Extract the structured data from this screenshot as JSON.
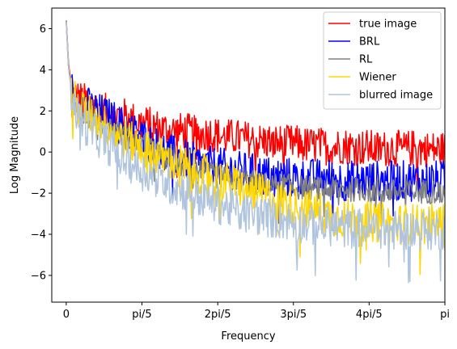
{
  "chart_data": {
    "type": "line",
    "title": "",
    "xlabel": "Frequency",
    "ylabel": "Log Magnitude",
    "xlim": [
      -0.12,
      3.14159
    ],
    "ylim": [
      -7.3,
      7.0
    ],
    "grid": false,
    "legend_position": "top-right",
    "xticks": [
      {
        "value": 0,
        "label": "0"
      },
      {
        "value": 0.628,
        "label": "pi/5"
      },
      {
        "value": 1.257,
        "label": "2pi/5"
      },
      {
        "value": 1.885,
        "label": "3pi/5"
      },
      {
        "value": 2.513,
        "label": "4pi/5"
      },
      {
        "value": 3.142,
        "label": "pi"
      }
    ],
    "yticks": [
      {
        "value": -6,
        "label": "−6"
      },
      {
        "value": -4,
        "label": "−4"
      },
      {
        "value": -2,
        "label": "−2"
      },
      {
        "value": 0,
        "label": "0"
      },
      {
        "value": 2,
        "label": "2"
      },
      {
        "value": 4,
        "label": "4"
      },
      {
        "value": 6,
        "label": "6"
      }
    ],
    "series": [
      {
        "name": "true image",
        "color": "#ff0000",
        "x": [
          0,
          0.02,
          0.05,
          0.1,
          0.2,
          0.3,
          0.4,
          0.5,
          0.6,
          0.7,
          0.8,
          0.9,
          1.0,
          1.1,
          1.2,
          1.3,
          1.4,
          1.5,
          1.6,
          1.7,
          1.8,
          1.9,
          2.0,
          2.1,
          2.2,
          2.3,
          2.4,
          2.5,
          2.6,
          2.7,
          2.8,
          2.9,
          3.0,
          3.1,
          3.14
        ],
        "y": [
          6.4,
          4.2,
          3.0,
          2.8,
          2.5,
          2.2,
          2.0,
          1.9,
          1.6,
          1.5,
          1.3,
          1.2,
          1.2,
          1.0,
          1.1,
          0.9,
          0.9,
          0.8,
          0.7,
          0.7,
          0.6,
          0.6,
          0.5,
          0.5,
          0.4,
          0.5,
          0.4,
          0.4,
          0.3,
          0.4,
          0.3,
          0.4,
          0.3,
          0.3,
          0.3
        ],
        "noise": 0.9
      },
      {
        "name": "BRL",
        "color": "#0000ff",
        "x": [
          0,
          0.02,
          0.05,
          0.1,
          0.2,
          0.3,
          0.4,
          0.5,
          0.6,
          0.7,
          0.8,
          0.9,
          1.0,
          1.1,
          1.2,
          1.3,
          1.4,
          1.5,
          1.6,
          1.7,
          1.8,
          1.9,
          2.0,
          2.1,
          2.2,
          2.3,
          2.4,
          2.5,
          2.6,
          2.7,
          2.8,
          2.9,
          3.0,
          3.1,
          3.14
        ],
        "y": [
          6.4,
          4.0,
          3.1,
          2.8,
          2.3,
          2.0,
          1.7,
          1.3,
          1.0,
          0.6,
          0.3,
          0.0,
          -0.2,
          -0.4,
          -0.5,
          -0.6,
          -0.7,
          -0.8,
          -0.9,
          -1.0,
          -1.0,
          -1.1,
          -1.1,
          -1.1,
          -1.1,
          -1.2,
          -1.2,
          -1.2,
          -1.2,
          -1.2,
          -1.2,
          -1.2,
          -1.2,
          -1.2,
          -1.2
        ],
        "noise": 1.0
      },
      {
        "name": "RL",
        "color": "#808080",
        "x": [
          0,
          0.02,
          0.05,
          0.1,
          0.2,
          0.3,
          0.4,
          0.5,
          0.6,
          0.7,
          0.8,
          0.9,
          1.0,
          1.1,
          1.2,
          1.3,
          1.4,
          1.5,
          1.6,
          1.7,
          1.8,
          1.9,
          2.0,
          2.1,
          2.2,
          2.3,
          2.4,
          2.5,
          2.6,
          2.7,
          2.8,
          2.9,
          3.0,
          3.1,
          3.14
        ],
        "y": [
          6.3,
          4.0,
          2.8,
          2.3,
          1.9,
          1.5,
          1.2,
          0.8,
          0.5,
          0.2,
          -0.1,
          -0.4,
          -0.6,
          -0.8,
          -1.0,
          -1.1,
          -1.2,
          -1.3,
          -1.4,
          -1.5,
          -1.5,
          -1.6,
          -1.6,
          -1.7,
          -1.7,
          -1.7,
          -1.7,
          -1.7,
          -1.8,
          -1.8,
          -1.8,
          -1.8,
          -1.8,
          -1.8,
          -1.8
        ],
        "noise": 0.6
      },
      {
        "name": "Wiener",
        "color": "#ffd700",
        "x": [
          0,
          0.02,
          0.05,
          0.1,
          0.2,
          0.3,
          0.4,
          0.5,
          0.6,
          0.7,
          0.8,
          0.9,
          1.0,
          1.1,
          1.2,
          1.3,
          1.4,
          1.5,
          1.6,
          1.7,
          1.8,
          1.9,
          2.0,
          2.1,
          2.2,
          2.3,
          2.4,
          2.5,
          2.6,
          2.7,
          2.8,
          2.9,
          3.0,
          3.1,
          3.14
        ],
        "y": [
          6.3,
          4.0,
          2.9,
          2.4,
          2.0,
          1.6,
          1.2,
          0.8,
          0.5,
          0.2,
          -0.1,
          -0.3,
          -0.5,
          -0.8,
          -1.0,
          -1.2,
          -1.4,
          -1.6,
          -1.8,
          -2.0,
          -2.2,
          -2.4,
          -2.6,
          -2.7,
          -2.9,
          -3.0,
          -3.1,
          -3.2,
          -3.2,
          -3.3,
          -3.3,
          -3.3,
          -3.3,
          -3.3,
          -3.3
        ],
        "noise": 1.0
      },
      {
        "name": "blurred image",
        "color": "#b0c4de",
        "x": [
          0,
          0.02,
          0.05,
          0.1,
          0.2,
          0.3,
          0.4,
          0.5,
          0.6,
          0.7,
          0.8,
          0.9,
          1.0,
          1.1,
          1.2,
          1.3,
          1.4,
          1.5,
          1.6,
          1.7,
          1.8,
          1.9,
          2.0,
          2.1,
          2.2,
          2.3,
          2.4,
          2.5,
          2.6,
          2.7,
          2.8,
          2.9,
          3.0,
          3.1,
          3.14
        ],
        "y": [
          6.4,
          4.0,
          2.7,
          2.0,
          1.2,
          0.8,
          0.3,
          -0.2,
          -0.6,
          -0.9,
          -1.2,
          -1.5,
          -1.7,
          -2.0,
          -2.2,
          -2.4,
          -2.6,
          -2.8,
          -2.9,
          -3.0,
          -3.1,
          -3.2,
          -3.3,
          -3.4,
          -3.4,
          -3.5,
          -3.5,
          -3.5,
          -3.5,
          -3.6,
          -3.6,
          -3.6,
          -3.6,
          -3.6,
          -3.6
        ],
        "noise": 1.0
      }
    ]
  }
}
